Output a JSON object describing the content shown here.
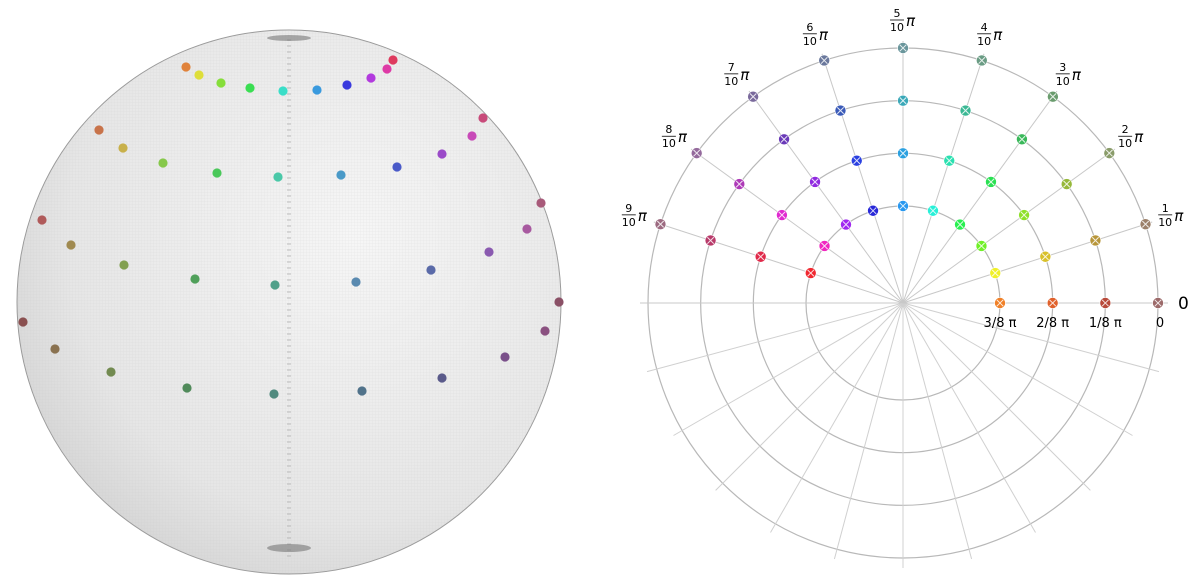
{
  "chart_data": [
    {
      "type": "scatter",
      "title": "",
      "panel": "sphere",
      "xlabel": "",
      "ylabel": "",
      "grid": true,
      "rings": [
        {
          "name": "ring-top",
          "points": [
            {
              "color": "#e0823a"
            },
            {
              "color": "#dede3a"
            },
            {
              "color": "#86de3a"
            },
            {
              "color": "#3ade52"
            },
            {
              "color": "#3adec8"
            },
            {
              "color": "#3a9ade"
            },
            {
              "color": "#3a3ade"
            },
            {
              "color": "#b23ade"
            },
            {
              "color": "#de3aa6"
            },
            {
              "color": "#de3a5e"
            }
          ]
        },
        {
          "name": "ring-2",
          "points": [
            {
              "color": "#c8734a"
            },
            {
              "color": "#c8b04a"
            },
            {
              "color": "#86c84a"
            },
            {
              "color": "#4ac85a"
            },
            {
              "color": "#4ac8a8"
            },
            {
              "color": "#4a9ac8"
            },
            {
              "color": "#4a5ac8"
            },
            {
              "color": "#9a4ac8"
            },
            {
              "color": "#c84ab8"
            },
            {
              "color": "#c84a7a"
            }
          ]
        },
        {
          "name": "ring-3",
          "points": [
            {
              "color": "#b05a5a"
            },
            {
              "color": "#a08a50"
            },
            {
              "color": "#82a050"
            },
            {
              "color": "#50a05a"
            },
            {
              "color": "#50a08a"
            },
            {
              "color": "#5a8ab0"
            },
            {
              "color": "#5a6aa8"
            },
            {
              "color": "#8a5ab0"
            },
            {
              "color": "#a85aa0"
            },
            {
              "color": "#a85a7a"
            }
          ]
        },
        {
          "name": "ring-4",
          "points": [
            {
              "color": "#8a5050"
            },
            {
              "color": "#8a7250"
            },
            {
              "color": "#728a50"
            },
            {
              "color": "#508a5a"
            },
            {
              "color": "#508a7e"
            },
            {
              "color": "#50728a"
            },
            {
              "color": "#5a5a8a"
            },
            {
              "color": "#7a508a"
            },
            {
              "color": "#8a5080"
            },
            {
              "color": "#8a5066"
            }
          ]
        }
      ]
    },
    {
      "type": "scatter",
      "panel": "polar",
      "title": "",
      "axis": "polar",
      "radial_axis_label": "0",
      "radial_ticks": [
        {
          "label": "0",
          "value": 0
        },
        {
          "label": "1/8 π",
          "value": 0.125
        },
        {
          "label": "2/8 π",
          "value": 0.25
        },
        {
          "label": "3/8 π",
          "value": 0.375
        }
      ],
      "angle_ticks": [
        {
          "num": "1",
          "den": "10",
          "sym": "π",
          "value": 0.1
        },
        {
          "num": "2",
          "den": "10",
          "sym": "π",
          "value": 0.2
        },
        {
          "num": "3",
          "den": "10",
          "sym": "π",
          "value": 0.3
        },
        {
          "num": "4",
          "den": "10",
          "sym": "π",
          "value": 0.4
        },
        {
          "num": "5",
          "den": "10",
          "sym": "π",
          "value": 0.5
        },
        {
          "num": "6",
          "den": "10",
          "sym": "π",
          "value": 0.6
        },
        {
          "num": "7",
          "den": "10",
          "sym": "π",
          "value": 0.7
        },
        {
          "num": "8",
          "den": "10",
          "sym": "π",
          "value": 0.8
        },
        {
          "num": "9",
          "den": "10",
          "sym": "π",
          "value": 0.9
        }
      ],
      "theta_units": "π",
      "polar_units": "π",
      "series": [
        {
          "polar": 0.0,
          "points": [
            {
              "theta": 0.0,
              "color": "#9c6a6a"
            },
            {
              "theta": 0.1,
              "color": "#9c806a"
            },
            {
              "theta": 0.2,
              "color": "#8a9c6a"
            },
            {
              "theta": 0.3,
              "color": "#6a9c6e"
            },
            {
              "theta": 0.4,
              "color": "#6a9c84"
            },
            {
              "theta": 0.5,
              "color": "#6a969c"
            },
            {
              "theta": 0.6,
              "color": "#6a789c"
            },
            {
              "theta": 0.7,
              "color": "#7a6a9c"
            },
            {
              "theta": 0.8,
              "color": "#946a9c"
            },
            {
              "theta": 0.9,
              "color": "#9c6a80"
            }
          ]
        },
        {
          "polar": 0.125,
          "points": [
            {
              "theta": 0.0,
              "color": "#b84a3a"
            },
            {
              "theta": 0.1,
              "color": "#b8963a"
            },
            {
              "theta": 0.2,
              "color": "#96b83a"
            },
            {
              "theta": 0.3,
              "color": "#3ab85a"
            },
            {
              "theta": 0.4,
              "color": "#3ab894"
            },
            {
              "theta": 0.5,
              "color": "#3aa8b8"
            },
            {
              "theta": 0.6,
              "color": "#3a5ab8"
            },
            {
              "theta": 0.7,
              "color": "#6a3ab8"
            },
            {
              "theta": 0.8,
              "color": "#ae3ab8"
            },
            {
              "theta": 0.9,
              "color": "#b83a6a"
            }
          ]
        },
        {
          "polar": 0.25,
          "points": [
            {
              "theta": 0.0,
              "color": "#e0602a"
            },
            {
              "theta": 0.1,
              "color": "#d8c02a"
            },
            {
              "theta": 0.2,
              "color": "#8ee02a"
            },
            {
              "theta": 0.3,
              "color": "#2ae052"
            },
            {
              "theta": 0.4,
              "color": "#2ae0b0"
            },
            {
              "theta": 0.5,
              "color": "#2aa0e0"
            },
            {
              "theta": 0.6,
              "color": "#2a40e0"
            },
            {
              "theta": 0.7,
              "color": "#902ae0"
            },
            {
              "theta": 0.8,
              "color": "#e02ad0"
            },
            {
              "theta": 0.9,
              "color": "#e02a4a"
            }
          ]
        },
        {
          "polar": 0.375,
          "points": [
            {
              "theta": 0.0,
              "color": "#f08028"
            },
            {
              "theta": 0.1,
              "color": "#f0f028"
            },
            {
              "theta": 0.2,
              "color": "#70f028"
            },
            {
              "theta": 0.3,
              "color": "#28f050"
            },
            {
              "theta": 0.4,
              "color": "#28f0d8"
            },
            {
              "theta": 0.5,
              "color": "#2898f0"
            },
            {
              "theta": 0.6,
              "color": "#2828d8"
            },
            {
              "theta": 0.7,
              "color": "#a028f0"
            },
            {
              "theta": 0.8,
              "color": "#f028c0"
            },
            {
              "theta": 0.9,
              "color": "#f02830"
            }
          ]
        }
      ]
    }
  ]
}
